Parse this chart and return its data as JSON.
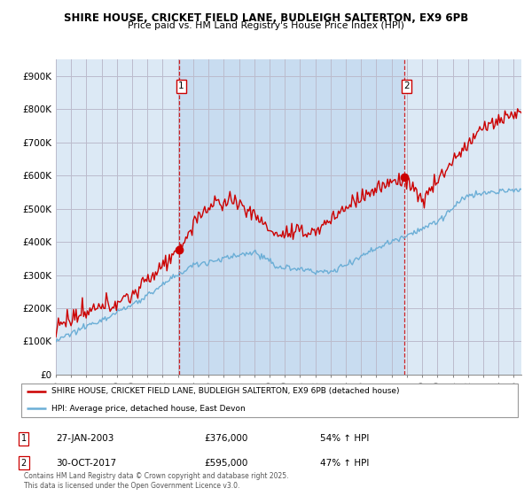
{
  "title1": "SHIRE HOUSE, CRICKET FIELD LANE, BUDLEIGH SALTERTON, EX9 6PB",
  "title2": "Price paid vs. HM Land Registry's House Price Index (HPI)",
  "ylim": [
    0,
    950000
  ],
  "yticks": [
    0,
    100000,
    200000,
    300000,
    400000,
    500000,
    600000,
    700000,
    800000,
    900000
  ],
  "ytick_labels": [
    "£0",
    "£100K",
    "£200K",
    "£300K",
    "£400K",
    "£500K",
    "£600K",
    "£700K",
    "£800K",
    "£900K"
  ],
  "sale1_year": 2003.07,
  "sale1_price": 376000,
  "sale2_year": 2017.83,
  "sale2_price": 595000,
  "line_color_red": "#cc0000",
  "line_color_blue": "#6baed6",
  "grid_color": "#bbbbcc",
  "bg_color": "#ffffff",
  "plot_bg_color": "#dce9f5",
  "highlight_bg_color": "#c8dcf0",
  "legend_line1": "SHIRE HOUSE, CRICKET FIELD LANE, BUDLEIGH SALTERTON, EX9 6PB (detached house)",
  "legend_line2": "HPI: Average price, detached house, East Devon",
  "annot1_date": "27-JAN-2003",
  "annot1_price": "£376,000",
  "annot1_hpi": "54% ↑ HPI",
  "annot2_date": "30-OCT-2017",
  "annot2_price": "£595,000",
  "annot2_hpi": "47% ↑ HPI",
  "footer": "Contains HM Land Registry data © Crown copyright and database right 2025.\nThis data is licensed under the Open Government Licence v3.0.",
  "xmin": 1995.0,
  "xmax": 2025.5
}
